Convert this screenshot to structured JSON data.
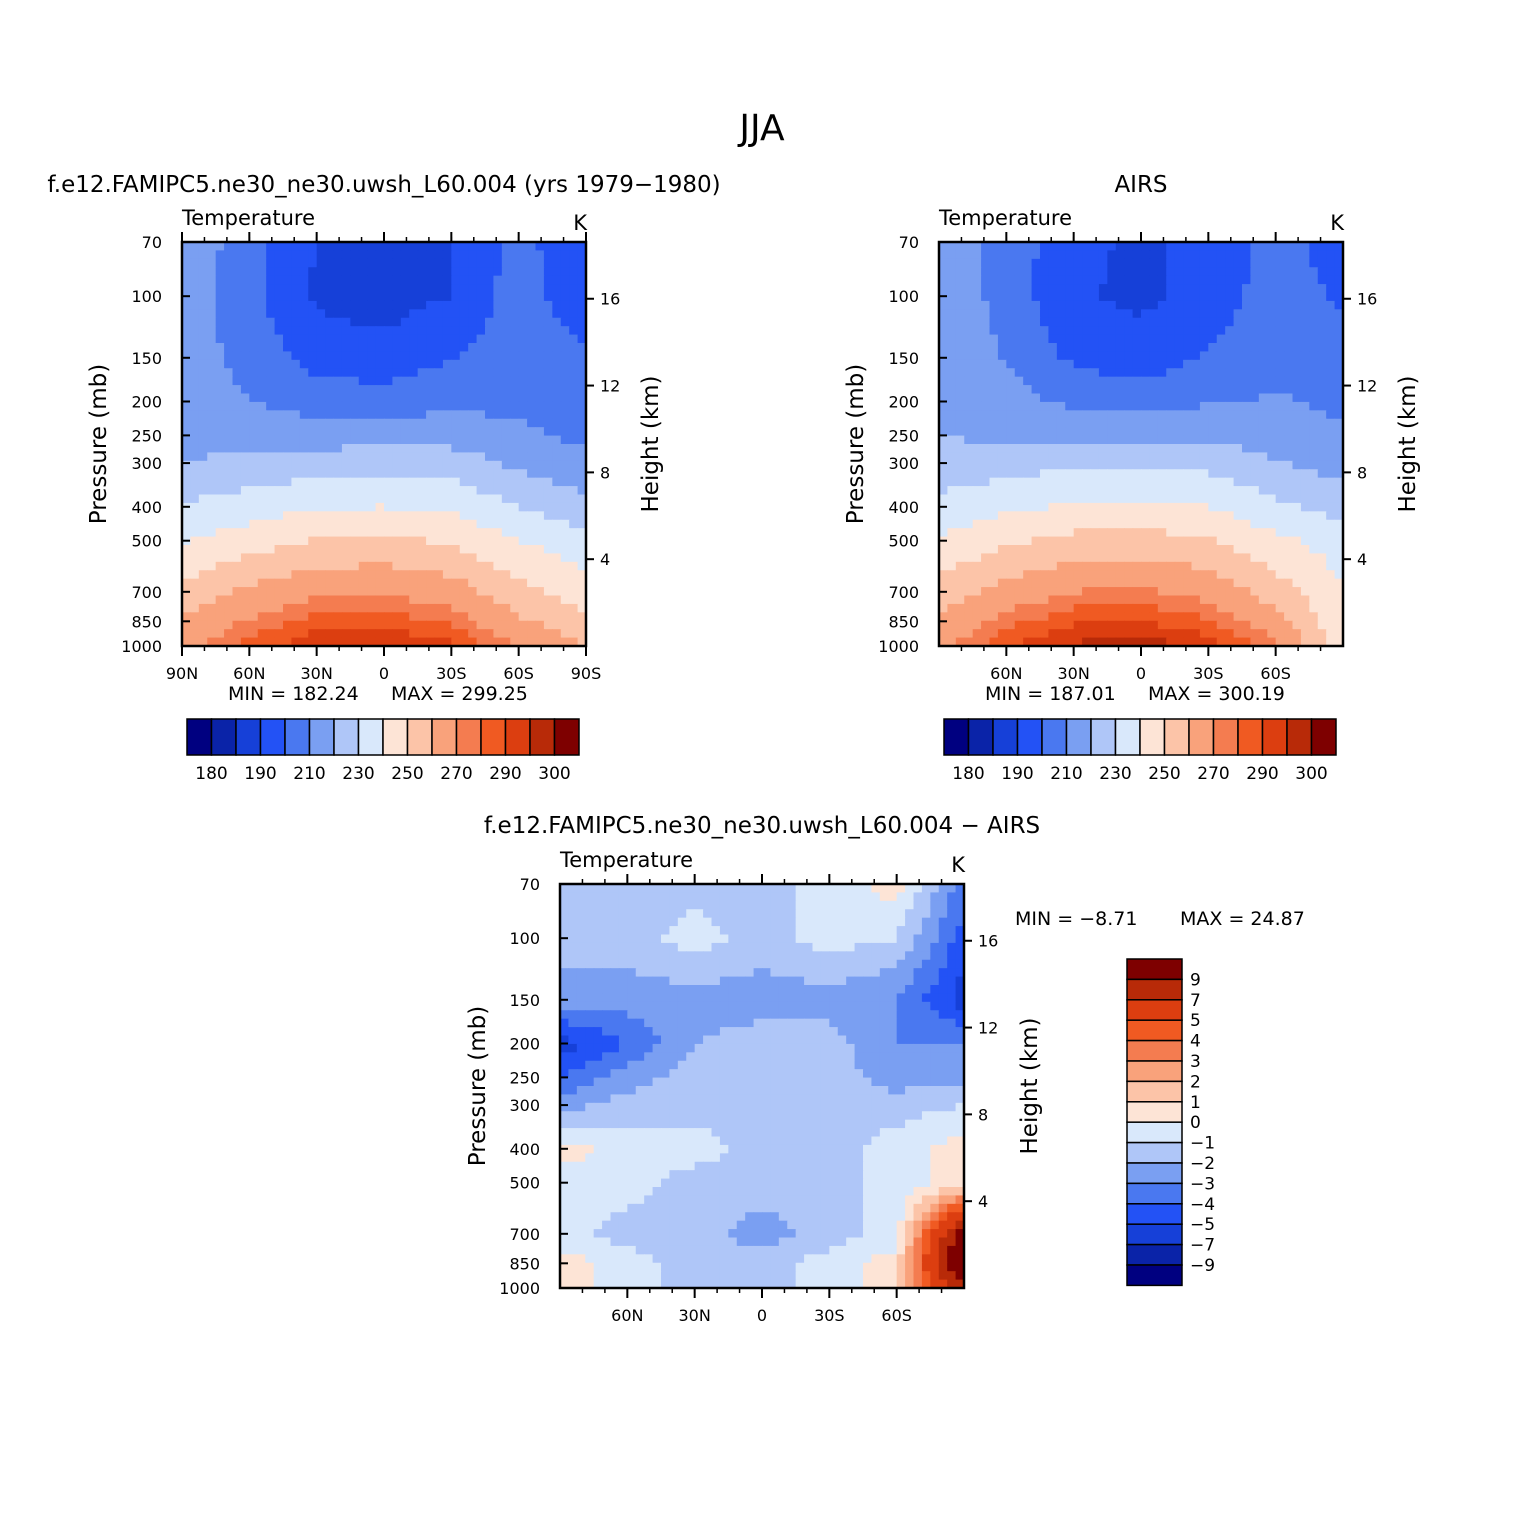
{
  "figure": {
    "title": "JJA"
  },
  "colors": {
    "temperature_palette": [
      "#000080",
      "#0a23a8",
      "#1640d8",
      "#2352f5",
      "#4a78f0",
      "#7a9ff2",
      "#afc6f8",
      "#d9e8fb",
      "#fde4d6",
      "#fcc4a8",
      "#f9a27b",
      "#f47c50",
      "#f05a22",
      "#dc3e10",
      "#b82a08",
      "#7e0000"
    ],
    "diff_palette": [
      "#000080",
      "#0a23a8",
      "#1640d8",
      "#2352f5",
      "#4a78f0",
      "#7a9ff2",
      "#afc6f8",
      "#d9e8fb",
      "#fde4d6",
      "#fcc4a8",
      "#f9a27b",
      "#f47c50",
      "#f05a22",
      "#dc3e10",
      "#b82a08",
      "#7e0000"
    ]
  },
  "panels": [
    {
      "title": "f.e12.FAMIPC5.ne30_ne30.uwsh_L60.004 (yrs 1979−1980)",
      "variable": "Temperature",
      "units": "K",
      "ylabel": "Pressure (mb)",
      "y2label": "Height (km)",
      "pressure_ticks": [
        "70",
        "100",
        "150",
        "200",
        "250",
        "300",
        "400",
        "500",
        "700",
        "850",
        "1000"
      ],
      "height_ticks": [
        "16",
        "12",
        "8",
        "4"
      ],
      "lat_ticks": [
        "90N",
        "60N",
        "30N",
        "0",
        "30S",
        "60S",
        "90S"
      ],
      "min_label": "MIN = 182.24",
      "max_label": "MAX = 299.25",
      "colorbar_ticks": [
        "180",
        "190",
        "210",
        "230",
        "250",
        "270",
        "290",
        "300"
      ]
    },
    {
      "title": "AIRS",
      "variable": "Temperature",
      "units": "K",
      "ylabel": "Pressure (mb)",
      "y2label": "Height (km)",
      "pressure_ticks": [
        "70",
        "100",
        "150",
        "200",
        "250",
        "300",
        "400",
        "500",
        "700",
        "850",
        "1000"
      ],
      "height_ticks": [
        "16",
        "12",
        "8",
        "4"
      ],
      "lat_ticks": [
        "60N",
        "30N",
        "0",
        "30S",
        "60S"
      ],
      "min_label": "MIN = 187.01",
      "max_label": "MAX = 300.19",
      "colorbar_ticks": [
        "180",
        "190",
        "210",
        "230",
        "250",
        "270",
        "290",
        "300"
      ]
    },
    {
      "title": "f.e12.FAMIPC5.ne30_ne30.uwsh_L60.004 − AIRS",
      "variable": "Temperature",
      "units": "K",
      "ylabel": "Pressure (mb)",
      "y2label": "Height (km)",
      "pressure_ticks": [
        "70",
        "100",
        "150",
        "200",
        "250",
        "300",
        "400",
        "500",
        "700",
        "850",
        "1000"
      ],
      "height_ticks": [
        "16",
        "12",
        "8",
        "4"
      ],
      "lat_ticks": [
        "60N",
        "30N",
        "0",
        "30S",
        "60S"
      ],
      "min_label": "MIN = −8.71",
      "max_label": "MAX = 24.87",
      "colorbar_ticks": [
        "9",
        "7",
        "5",
        "4",
        "3",
        "2",
        "1",
        "0",
        "−1",
        "−2",
        "−3",
        "−4",
        "−5",
        "−7",
        "−9"
      ]
    }
  ],
  "chart_data": [
    {
      "type": "heatmap",
      "title": "f.e12.FAMIPC5.ne30_ne30.uwsh_L60.004 (yrs 1979−1980)",
      "xlabel": "",
      "ylabel": "Pressure (mb)",
      "y2label": "Height (km)",
      "units": "K",
      "x": [
        90,
        60,
        30,
        0,
        -30,
        -60,
        -90
      ],
      "y": [
        70,
        100,
        150,
        200,
        250,
        300,
        400,
        500,
        700,
        850,
        1000
      ],
      "levels": [
        180,
        190,
        200,
        210,
        220,
        230,
        240,
        250,
        260,
        270,
        280,
        285,
        290,
        295,
        300
      ],
      "values": [
        [
          228,
          214,
          200,
          195,
          200,
          214,
          200
        ],
        [
          226,
          213,
          198,
          196,
          200,
          215,
          203
        ],
        [
          226,
          216,
          206,
          203,
          210,
          214,
          212
        ],
        [
          227,
          220,
          216,
          215,
          217,
          218,
          215
        ],
        [
          227,
          225,
          225,
          226,
          226,
          222,
          218
        ],
        [
          230,
          233,
          235,
          236,
          235,
          228,
          222
        ],
        [
          241,
          245,
          249,
          250,
          248,
          240,
          233
        ],
        [
          249,
          255,
          261,
          262,
          259,
          250,
          244
        ],
        [
          263,
          272,
          278,
          279,
          275,
          263,
          254
        ],
        [
          271,
          281,
          287,
          288,
          284,
          272,
          262
        ],
        [
          278,
          287,
          294,
          296,
          291,
          280,
          270
        ]
      ],
      "min": 182.24,
      "max": 299.25
    },
    {
      "type": "heatmap",
      "title": "AIRS",
      "xlabel": "",
      "ylabel": "Pressure (mb)",
      "y2label": "Height (km)",
      "units": "K",
      "x": [
        90,
        60,
        30,
        0,
        -30,
        -60,
        -90
      ],
      "y": [
        70,
        100,
        150,
        200,
        250,
        300,
        400,
        500,
        700,
        850,
        1000
      ],
      "levels": [
        180,
        190,
        200,
        210,
        220,
        230,
        240,
        250,
        260,
        270,
        280,
        285,
        290,
        295,
        300
      ],
      "values": [
        [
          228,
          216,
          203,
          198,
          203,
          214,
          205
        ],
        [
          228,
          216,
          201,
          198,
          203,
          216,
          208
        ],
        [
          229,
          219,
          208,
          204,
          211,
          217,
          214
        ],
        [
          230,
          224,
          218,
          216,
          219,
          221,
          218
        ],
        [
          230,
          228,
          228,
          228,
          228,
          225,
          221
        ],
        [
          233,
          236,
          238,
          238,
          237,
          231,
          225
        ],
        [
          243,
          248,
          251,
          252,
          250,
          242,
          236
        ],
        [
          251,
          258,
          263,
          264,
          261,
          252,
          246
        ],
        [
          265,
          274,
          280,
          281,
          277,
          265,
          250
        ],
        [
          272,
          283,
          289,
          290,
          286,
          274,
          252
        ],
        [
          278,
          289,
          296,
          298,
          293,
          282,
          254
        ]
      ],
      "min": 187.01,
      "max": 300.19
    },
    {
      "type": "heatmap",
      "title": "f.e12.FAMIPC5.ne30_ne30.uwsh_L60.004 − AIRS",
      "xlabel": "",
      "ylabel": "Pressure (mb)",
      "y2label": "Height (km)",
      "units": "K",
      "x": [
        90,
        60,
        30,
        0,
        -30,
        -60,
        -90
      ],
      "y": [
        70,
        100,
        150,
        200,
        250,
        300,
        400,
        500,
        700,
        850,
        1000
      ],
      "levels": [
        -9,
        -7,
        -5,
        -4,
        -3,
        -2,
        -1,
        0,
        1,
        2,
        3,
        4,
        5,
        7,
        9
      ],
      "values": [
        [
          -1.5,
          -1.5,
          -1.5,
          -1.5,
          -0.5,
          0.5,
          -3.5
        ],
        [
          -1.5,
          -1.5,
          -0.5,
          -1.5,
          -0.5,
          -1,
          -4.5
        ],
        [
          -2.5,
          -2.5,
          -2.5,
          -2.5,
          -2.5,
          -3,
          -5.5
        ],
        [
          -5.5,
          -4,
          -2,
          -1.5,
          -1.5,
          -3,
          -3
        ],
        [
          -4,
          -2.5,
          -1.5,
          -1.5,
          -1.5,
          -2.5,
          -2.5
        ],
        [
          -2.5,
          -1.5,
          -1.5,
          -1.5,
          -1.5,
          -1.5,
          -1
        ],
        [
          0.5,
          -0.5,
          -0.5,
          -1.5,
          -1.5,
          -0.5,
          0.5
        ],
        [
          -0.5,
          -0.5,
          -1.5,
          -1.5,
          -1.5,
          -0.5,
          0.5
        ],
        [
          -0.5,
          -1.5,
          -1.5,
          -2.5,
          -1.5,
          -0.5,
          10
        ],
        [
          0.5,
          -0.5,
          -1.5,
          -1.5,
          -0.5,
          0.5,
          12
        ],
        [
          0.5,
          -0.5,
          -1.5,
          -1.5,
          -0.5,
          0.5,
          8
        ]
      ],
      "min": -8.71,
      "max": 24.87
    }
  ]
}
